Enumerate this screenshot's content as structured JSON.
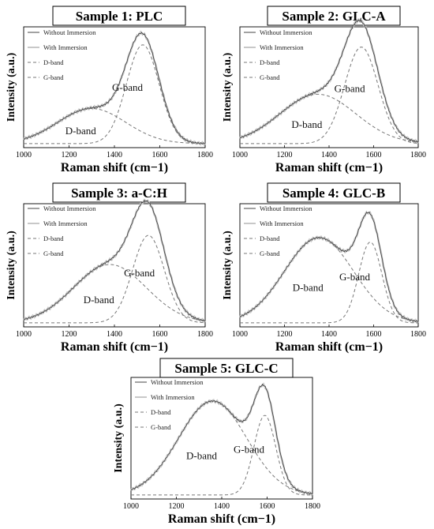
{
  "chart_data": [
    {
      "type": "line",
      "title": "Sample 1: PLC",
      "xlabel": "Raman shift (cm−1)",
      "ylabel": "Intensity (a.u.)",
      "xlim": [
        1000,
        1800
      ],
      "xticks": [
        "1000",
        "1200",
        "1400",
        "1600",
        "1800"
      ],
      "legend": [
        "Without Immersion",
        "With Immersion",
        "D-band",
        "G-band"
      ],
      "legend_position": "top-left",
      "annotations": [
        "D-band",
        "G-band"
      ],
      "d_band": {
        "center": 1300,
        "width": 150,
        "amplitude": 0.32
      },
      "g_band": {
        "center": 1525,
        "width": 72,
        "amplitude": 0.9
      },
      "series": [
        {
          "name": "Without Immersion",
          "x": [
            1000,
            1100,
            1200,
            1300,
            1400,
            1500,
            1525,
            1600,
            1700,
            1800
          ],
          "y": [
            0.02,
            0.1,
            0.23,
            0.33,
            0.42,
            0.88,
            0.98,
            0.72,
            0.18,
            0.02
          ]
        },
        {
          "name": "With Immersion",
          "x": [
            1000,
            1100,
            1200,
            1300,
            1400,
            1500,
            1525,
            1600,
            1700,
            1800
          ],
          "y": [
            0.02,
            0.1,
            0.23,
            0.33,
            0.42,
            0.87,
            0.97,
            0.72,
            0.18,
            0.02
          ]
        }
      ]
    },
    {
      "type": "line",
      "title": "Sample 2: GLC-A",
      "xlabel": "Raman shift (cm−1)",
      "ylabel": "Intensity (a.u.)",
      "xlim": [
        1000,
        1800
      ],
      "xticks": [
        "1000",
        "1200",
        "1400",
        "1600",
        "1800"
      ],
      "legend": [
        "Without Immersion",
        "With Immersion",
        "D-band",
        "G-band"
      ],
      "legend_position": "top-left",
      "annotations": [
        "D-band",
        "G-band"
      ],
      "d_band": {
        "center": 1350,
        "width": 170,
        "amplitude": 0.45
      },
      "g_band": {
        "center": 1545,
        "width": 75,
        "amplitude": 0.88
      },
      "series": [
        {
          "name": "Without Immersion",
          "x": [
            1000,
            1100,
            1200,
            1300,
            1400,
            1500,
            1530,
            1600,
            1700,
            1800
          ],
          "y": [
            0.02,
            0.12,
            0.27,
            0.42,
            0.6,
            0.9,
            0.98,
            0.85,
            0.28,
            0.03
          ]
        },
        {
          "name": "With Immersion",
          "x": [
            1000,
            1100,
            1200,
            1300,
            1400,
            1500,
            1530,
            1600,
            1700,
            1800
          ],
          "y": [
            0.02,
            0.12,
            0.27,
            0.42,
            0.6,
            0.9,
            0.97,
            0.85,
            0.28,
            0.03
          ]
        }
      ]
    },
    {
      "type": "line",
      "title": "Sample 3: a-C:H",
      "xlabel": "Raman shift (cm−1)",
      "ylabel": "Intensity (a.u.)",
      "xlim": [
        1000,
        1800
      ],
      "xticks": [
        "1000",
        "1200",
        "1400",
        "1600",
        "1800"
      ],
      "legend": [
        "Without Immersion",
        "With Immersion",
        "D-band",
        "G-band"
      ],
      "legend_position": "top-left",
      "annotations": [
        "D-band",
        "G-band"
      ],
      "d_band": {
        "center": 1380,
        "width": 160,
        "amplitude": 0.52
      },
      "g_band": {
        "center": 1550,
        "width": 70,
        "amplitude": 0.78
      },
      "series": [
        {
          "name": "Without Immersion",
          "x": [
            1000,
            1100,
            1200,
            1300,
            1400,
            1500,
            1540,
            1600,
            1700,
            1800
          ],
          "y": [
            0.03,
            0.13,
            0.3,
            0.48,
            0.64,
            0.9,
            0.98,
            0.85,
            0.3,
            0.04
          ]
        },
        {
          "name": "With Immersion",
          "x": [
            1000,
            1100,
            1200,
            1300,
            1400,
            1500,
            1540,
            1600,
            1700,
            1800
          ],
          "y": [
            0.03,
            0.13,
            0.3,
            0.48,
            0.64,
            0.9,
            0.97,
            0.85,
            0.3,
            0.04
          ]
        }
      ]
    },
    {
      "type": "line",
      "title": "Sample 4: GLC-B",
      "xlabel": "Raman shift (cm−1)",
      "ylabel": "Intensity (a.u.)",
      "xlim": [
        1000,
        1800
      ],
      "xticks": [
        "1000",
        "1200",
        "1400",
        "1600",
        "1800"
      ],
      "legend": [
        "Without Immersion",
        "With Immersion",
        "D-band",
        "G-band"
      ],
      "legend_position": "top-left",
      "annotations": [
        "D-band",
        "G-band"
      ],
      "d_band": {
        "center": 1355,
        "width": 155,
        "amplitude": 0.76
      },
      "g_band": {
        "center": 1585,
        "width": 52,
        "amplitude": 0.72
      },
      "series": [
        {
          "name": "Without Immersion",
          "x": [
            1000,
            1100,
            1200,
            1300,
            1355,
            1450,
            1500,
            1585,
            1700,
            1800
          ],
          "y": [
            0.02,
            0.08,
            0.32,
            0.68,
            0.76,
            0.66,
            0.73,
            0.98,
            0.18,
            0.02
          ]
        },
        {
          "name": "With Immersion",
          "x": [
            1000,
            1100,
            1200,
            1300,
            1355,
            1450,
            1500,
            1585,
            1700,
            1800
          ],
          "y": [
            0.02,
            0.08,
            0.32,
            0.68,
            0.75,
            0.66,
            0.73,
            0.97,
            0.18,
            0.02
          ]
        }
      ]
    },
    {
      "type": "line",
      "title": "Sample 5: GLC-C",
      "xlabel": "Raman shift (cm−1)",
      "ylabel": "Intensity (a.u.)",
      "xlim": [
        1000,
        1800
      ],
      "xticks": [
        "1000",
        "1200",
        "1400",
        "1600",
        "1800"
      ],
      "legend": [
        "Without Immersion",
        "With Immersion",
        "D-band",
        "G-band"
      ],
      "legend_position": "top-left",
      "annotations": [
        "D-band",
        "G-band"
      ],
      "d_band": {
        "center": 1360,
        "width": 150,
        "amplitude": 0.85
      },
      "g_band": {
        "center": 1590,
        "width": 48,
        "amplitude": 0.72
      },
      "series": [
        {
          "name": "Without Immersion",
          "x": [
            1000,
            1100,
            1200,
            1300,
            1360,
            1450,
            1500,
            1590,
            1700,
            1800
          ],
          "y": [
            0.02,
            0.08,
            0.35,
            0.78,
            0.86,
            0.74,
            0.75,
            0.98,
            0.12,
            0.02
          ]
        },
        {
          "name": "With Immersion",
          "x": [
            1000,
            1100,
            1200,
            1300,
            1360,
            1450,
            1500,
            1590,
            1700,
            1800
          ],
          "y": [
            0.02,
            0.08,
            0.35,
            0.78,
            0.85,
            0.74,
            0.75,
            0.97,
            0.12,
            0.02
          ]
        }
      ]
    }
  ]
}
